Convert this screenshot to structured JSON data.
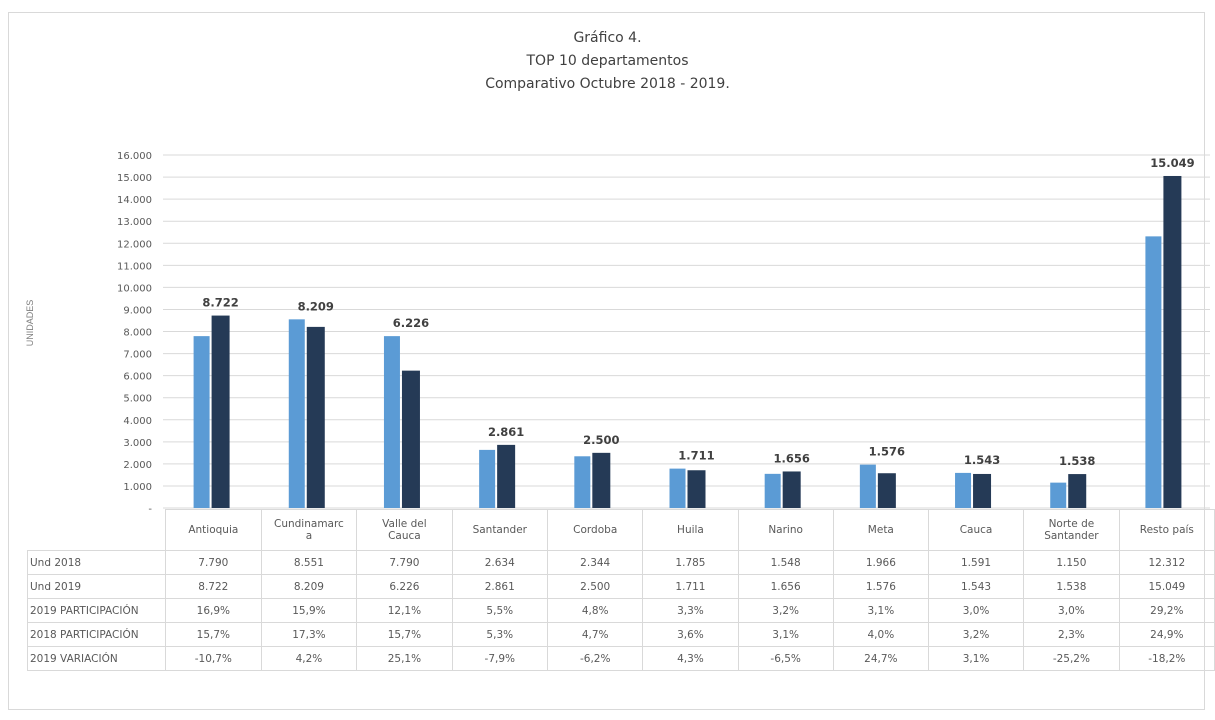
{
  "chart_data": {
    "type": "bar",
    "title": [
      "Gráfico 4.",
      "TOP 10 departamentos",
      "Comparativo Octubre 2018 - 2019."
    ],
    "ylabel": "UNIDADES",
    "ylim": [
      0,
      16000
    ],
    "yticks": [
      "-",
      "1.000",
      "2.000",
      "3.000",
      "4.000",
      "5.000",
      "6.000",
      "7.000",
      "8.000",
      "9.000",
      "10.000",
      "11.000",
      "12.000",
      "13.000",
      "14.000",
      "15.000",
      "16.000"
    ],
    "grid": true,
    "categories": [
      "Antioquia",
      "Cundinamarca",
      "Valle del Cauca",
      "Santander",
      "Cordoba",
      "Huila",
      "Narino",
      "Meta",
      "Cauca",
      "Norte de Santander",
      "Resto país"
    ],
    "series": [
      {
        "name": "Und 2018",
        "color": "#5b9bd5",
        "values": [
          7790,
          8551,
          7790,
          2634,
          2344,
          1785,
          1548,
          1966,
          1591,
          1150,
          12312
        ]
      },
      {
        "name": "Und 2019",
        "color": "#253a56",
        "values": [
          8722,
          8209,
          6226,
          2861,
          2500,
          1711,
          1656,
          1576,
          1543,
          1538,
          15049
        ]
      }
    ],
    "data_labels": [
      "8.722",
      "8.209",
      "6.226",
      "2.861",
      "2.500",
      "1.711",
      "1.656",
      "1.576",
      "1.543",
      "1.538",
      "15.049"
    ],
    "table": {
      "category_headers": [
        [
          "Antioquia"
        ],
        [
          "Cundinamarc",
          "a"
        ],
        [
          "Valle del",
          "Cauca"
        ],
        [
          "Santander"
        ],
        [
          "Cordoba"
        ],
        [
          "Huila"
        ],
        [
          "Narino"
        ],
        [
          "Meta"
        ],
        [
          "Cauca"
        ],
        [
          "Norte de",
          "Santander"
        ],
        [
          "Resto país"
        ]
      ],
      "rows": [
        {
          "label": "Und 2018",
          "cells": [
            "7.790",
            "8.551",
            "7.790",
            "2.634",
            "2.344",
            "1.785",
            "1.548",
            "1.966",
            "1.591",
            "1.150",
            "12.312"
          ]
        },
        {
          "label": "Und 2019",
          "cells": [
            "8.722",
            "8.209",
            "6.226",
            "2.861",
            "2.500",
            "1.711",
            "1.656",
            "1.576",
            "1.543",
            "1.538",
            "15.049"
          ]
        },
        {
          "label": "2019 PARTICIPACIÓN",
          "cells": [
            "16,9%",
            "15,9%",
            "12,1%",
            "5,5%",
            "4,8%",
            "3,3%",
            "3,2%",
            "3,1%",
            "3,0%",
            "3,0%",
            "29,2%"
          ]
        },
        {
          "label": "2018 PARTICIPACIÓN",
          "cells": [
            "15,7%",
            "17,3%",
            "15,7%",
            "5,3%",
            "4,7%",
            "3,6%",
            "3,1%",
            "4,0%",
            "3,2%",
            "2,3%",
            "24,9%"
          ]
        },
        {
          "label": "2019 VARIACIÓN",
          "cells": [
            "-10,7%",
            "4,2%",
            "25,1%",
            "-7,9%",
            "-6,2%",
            "4,3%",
            "-6,5%",
            "24,7%",
            "3,1%",
            "-25,2%",
            "-18,2%"
          ]
        }
      ]
    }
  }
}
